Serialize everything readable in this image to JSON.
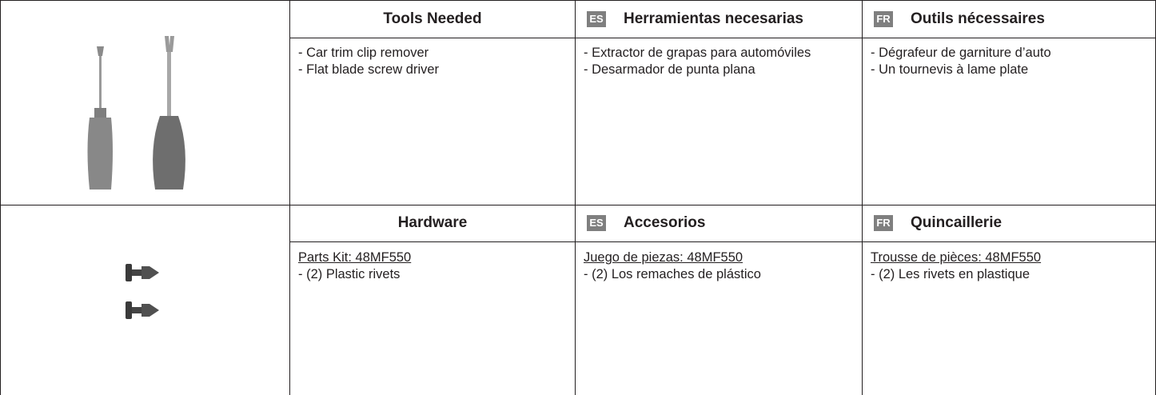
{
  "sections": [
    {
      "columns": [
        {
          "title": "Tools Needed",
          "items": [
            "- Car trim clip remover",
            "- Flat blade screw driver"
          ]
        },
        {
          "badge": "ES",
          "title": "Herramientas necesarias",
          "items": [
            "- Extractor de grapas para automóviles",
            "- Desarmador de punta plana"
          ]
        },
        {
          "badge": "FR",
          "title": "Outils nécessaires",
          "items": [
            "- Dégrafeur de garniture d’auto",
            "- Un tournevis à lame plate"
          ]
        }
      ]
    },
    {
      "columns": [
        {
          "title": "Hardware",
          "kit": "Parts Kit: 48MF550",
          "items": [
            "- (2) Plastic rivets"
          ]
        },
        {
          "badge": "ES",
          "title": "Accesorios",
          "kit": "Juego de piezas: 48MF550",
          "items": [
            "- (2) Los remaches de plástico"
          ]
        },
        {
          "badge": "FR",
          "title": "Quincaillerie",
          "kit": "Trousse de pièces: 48MF550",
          "items": [
            "- (2) Les rivets en plastique"
          ]
        }
      ]
    }
  ]
}
